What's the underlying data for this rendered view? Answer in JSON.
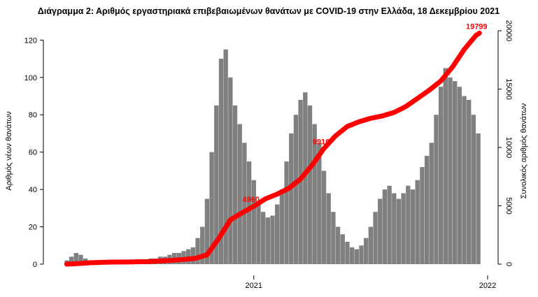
{
  "chart_data": {
    "type": "bar_line",
    "title": "Διάγραμμα 2: Αριθμός εργαστηριακά επιβεβαιωμένων θανάτων με COVID-19 στην Ελλάδα, 18 Δεκεμβρίου 2021",
    "y_label": "Αριθμός νέων θανάτων",
    "y2_label": "Συνολικός αριθμός θανάτων",
    "xlim": [
      2020.1,
      2022.045
    ],
    "xticks": [
      2021,
      2022
    ],
    "ylim": [
      0,
      125
    ],
    "yticks": [
      0,
      20,
      40,
      60,
      80,
      100,
      120
    ],
    "y2lim": [
      0,
      20000
    ],
    "y2ticks": [
      0,
      5000,
      10000,
      15000,
      20000
    ],
    "series": [
      {
        "type": "bar",
        "color": "#808080",
        "x": [
          2020.2,
          2020.22,
          2020.24,
          2020.26,
          2020.28,
          2020.3,
          2020.32,
          2020.34,
          2020.36,
          2020.38,
          2020.4,
          2020.42,
          2020.44,
          2020.46,
          2020.48,
          2020.5,
          2020.52,
          2020.54,
          2020.56,
          2020.58,
          2020.6,
          2020.62,
          2020.64,
          2020.66,
          2020.68,
          2020.7,
          2020.72,
          2020.74,
          2020.76,
          2020.78,
          2020.8,
          2020.82,
          2020.84,
          2020.86,
          2020.88,
          2020.9,
          2020.92,
          2020.94,
          2020.96,
          2020.98,
          2021,
          2021.02,
          2021.04,
          2021.06,
          2021.08,
          2021.1,
          2021.12,
          2021.14,
          2021.16,
          2021.18,
          2021.2,
          2021.22,
          2021.24,
          2021.26,
          2021.28,
          2021.3,
          2021.32,
          2021.34,
          2021.36,
          2021.38,
          2021.4,
          2021.42,
          2021.44,
          2021.46,
          2021.48,
          2021.5,
          2021.52,
          2021.54,
          2021.56,
          2021.58,
          2021.6,
          2021.62,
          2021.64,
          2021.66,
          2021.68,
          2021.7,
          2021.72,
          2021.74,
          2021.76,
          2021.78,
          2021.8,
          2021.82,
          2021.84,
          2021.86,
          2021.88,
          2021.9,
          2021.92,
          2021.94,
          2021.96
        ],
        "values": [
          2,
          4,
          6,
          5,
          3,
          2,
          1,
          1,
          1,
          0,
          1,
          0,
          1,
          1,
          1,
          1,
          1,
          2,
          3,
          3,
          4,
          4,
          5,
          6,
          6,
          7,
          8,
          9,
          14,
          20,
          35,
          60,
          85,
          110,
          115,
          100,
          85,
          75,
          65,
          55,
          45,
          32,
          28,
          25,
          26,
          32,
          40,
          55,
          70,
          80,
          88,
          92,
          85,
          75,
          65,
          50,
          38,
          28,
          20,
          16,
          12,
          9,
          8,
          10,
          14,
          20,
          28,
          35,
          40,
          42,
          38,
          35,
          38,
          42,
          40,
          45,
          52,
          58,
          65,
          80,
          95,
          105,
          100,
          98,
          95,
          90,
          88,
          80,
          70
        ]
      },
      {
        "type": "line",
        "color": "#ff0000",
        "axis": "y2",
        "x": [
          2020.2,
          2020.25,
          2020.3,
          2020.35,
          2020.4,
          2020.45,
          2020.5,
          2020.55,
          2020.6,
          2020.65,
          2020.7,
          2020.75,
          2020.8,
          2020.85,
          2020.9,
          2020.95,
          2021,
          2021.05,
          2021.1,
          2021.15,
          2021.2,
          2021.25,
          2021.3,
          2021.35,
          2021.4,
          2021.45,
          2021.5,
          2021.55,
          2021.6,
          2021.65,
          2021.7,
          2021.75,
          2021.8,
          2021.85,
          2021.9,
          2021.95,
          2021.965
        ],
        "values": [
          0,
          50,
          120,
          160,
          180,
          190,
          200,
          220,
          270,
          330,
          400,
          500,
          800,
          2200,
          3800,
          4400,
          4960,
          5600,
          6000,
          6500,
          7300,
          8500,
          9910,
          11000,
          11800,
          12200,
          12500,
          12700,
          13000,
          13500,
          14200,
          14900,
          15700,
          16900,
          18400,
          19600,
          19799
        ]
      }
    ],
    "annotations": [
      {
        "text": "4960",
        "x": 2021,
        "y": 4960
      },
      {
        "text": "9910",
        "x": 2021.3,
        "y": 9910
      },
      {
        "text": "19799",
        "x": 2021.965,
        "y": 19799
      }
    ]
  }
}
